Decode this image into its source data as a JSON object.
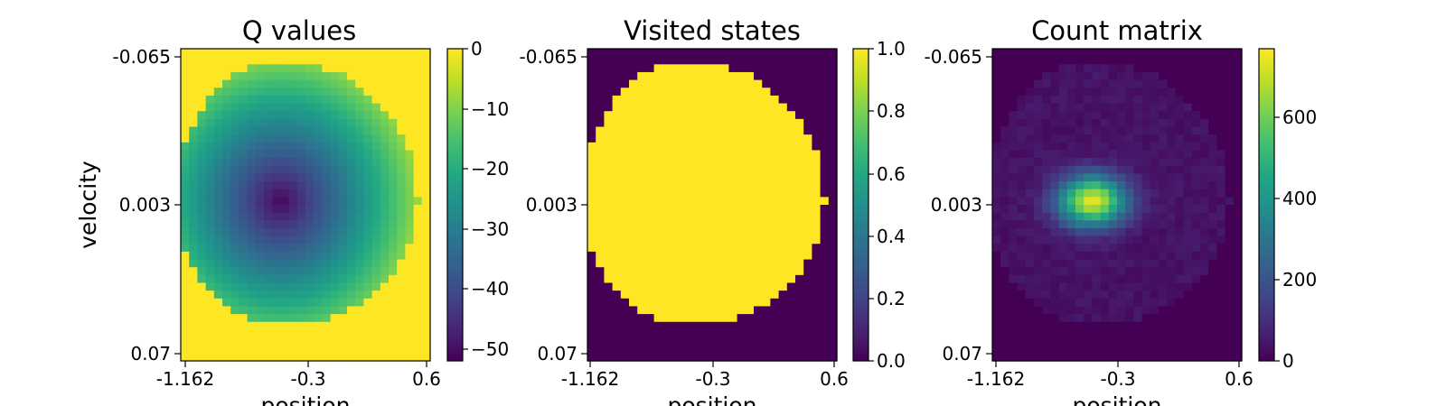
{
  "chart_data": [
    {
      "type": "heatmap",
      "title": "Q values",
      "xlabel": "position",
      "ylabel": "velocity",
      "x_ticks": [
        "-1.162",
        "-0.3",
        "0.6"
      ],
      "y_ticks": [
        "-0.065",
        "0.003",
        "0.07"
      ],
      "colorbar": {
        "ticks": [
          "0",
          "−10",
          "−20",
          "−30",
          "−40",
          "−50"
        ],
        "values": [
          0,
          -10,
          -20,
          -30,
          -40,
          -50
        ],
        "range": [
          -52,
          0
        ]
      },
      "colormap": "viridis",
      "grid": false
    },
    {
      "type": "heatmap",
      "title": "Visited states",
      "xlabel": "position",
      "ylabel": "",
      "x_ticks": [
        "-1.162",
        "-0.3",
        "0.6"
      ],
      "y_ticks": [
        "-0.065",
        "0.003",
        "0.07"
      ],
      "colorbar": {
        "ticks": [
          "1.0",
          "0.8",
          "0.6",
          "0.4",
          "0.2",
          "0.0"
        ],
        "values": [
          1.0,
          0.8,
          0.6,
          0.4,
          0.2,
          0.0
        ],
        "range": [
          0,
          1
        ]
      },
      "colormap": "viridis",
      "grid": false
    },
    {
      "type": "heatmap",
      "title": "Count matrix",
      "xlabel": "position",
      "ylabel": "",
      "x_ticks": [
        "-1.162",
        "-0.3",
        "0.6"
      ],
      "y_ticks": [
        "-0.065",
        "0.003",
        "0.07"
      ],
      "colorbar": {
        "ticks": [
          "600",
          "400",
          "200",
          "0"
        ],
        "values": [
          600,
          400,
          200,
          0
        ],
        "range": [
          0,
          770
        ]
      },
      "colormap": "viridis",
      "grid": false
    }
  ]
}
